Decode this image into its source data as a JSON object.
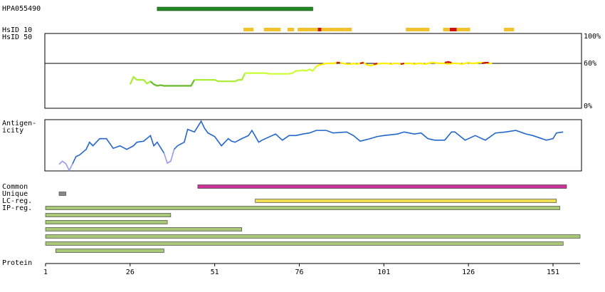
{
  "antibody": {
    "label": "HPA055490",
    "start": 34,
    "end": 80,
    "color": "#228822"
  },
  "hsid": {
    "label10": "HsID 10",
    "label50": "HsID 50",
    "segments": [
      {
        "start": 60,
        "end": 62,
        "color": "#f2c12e"
      },
      {
        "start": 66,
        "end": 70,
        "color": "#f2c12e"
      },
      {
        "start": 73,
        "end": 74,
        "color": "#f2c12e"
      },
      {
        "start": 76,
        "end": 82,
        "color": "#f2c12e"
      },
      {
        "start": 82,
        "end": 83,
        "color": "#cc1111"
      },
      {
        "start": 83,
        "end": 86,
        "color": "#f2c12e"
      },
      {
        "start": 87,
        "end": 89,
        "color": "#f2c12e"
      },
      {
        "start": 90,
        "end": 91,
        "color": "#f2c12e"
      },
      {
        "start": 108,
        "end": 114,
        "color": "#f2c12e"
      },
      {
        "start": 119,
        "end": 121,
        "color": "#f2c12e"
      },
      {
        "start": 121,
        "end": 123,
        "color": "#cc1111"
      },
      {
        "start": 123,
        "end": 126,
        "color": "#f2c12e"
      },
      {
        "start": 137,
        "end": 139,
        "color": "#f2c12e"
      }
    ]
  },
  "identity": {
    "ylim": [
      0,
      100
    ],
    "yticks": [
      {
        "value": 100,
        "label": "100%"
      },
      {
        "value": 60,
        "label": "60%"
      },
      {
        "value": 0,
        "label": "0%"
      }
    ],
    "segments": [
      {
        "color": "#aaee33",
        "start": 26,
        "values": [
          32,
          42,
          38,
          38,
          38,
          33,
          36
        ]
      },
      {
        "color": "#66bb22",
        "start": 32,
        "values": [
          36,
          32,
          30,
          31,
          30,
          30,
          30,
          30,
          30,
          30,
          30,
          30,
          30,
          38
        ]
      },
      {
        "color": "#aaee33",
        "start": 45,
        "values": [
          38,
          38,
          38,
          38,
          38,
          38,
          38,
          36,
          36,
          36,
          36,
          36,
          36,
          38,
          38,
          47
        ]
      },
      {
        "color": "#ccff33",
        "start": 60,
        "values": [
          47,
          47,
          47,
          47,
          47,
          47,
          47,
          46,
          46,
          46,
          46,
          46,
          46,
          46,
          47,
          50,
          50,
          51,
          50,
          52,
          50,
          56
        ]
      },
      {
        "color": "#ffee00",
        "start": 81,
        "values": [
          56,
          58,
          59,
          60,
          60,
          60,
          61,
          61,
          60,
          59,
          59,
          60,
          59,
          60,
          61,
          58,
          57,
          58,
          59,
          60,
          60,
          60,
          59,
          60,
          60,
          59,
          60,
          60,
          60,
          59,
          60,
          60,
          59,
          60,
          61,
          61,
          60,
          60,
          60,
          59,
          60,
          60,
          60,
          59,
          60,
          61,
          60,
          60,
          61,
          61,
          61,
          60,
          60
        ]
      },
      {
        "color": "#cc1111",
        "start": 87,
        "values": [
          61,
          61
        ]
      },
      {
        "color": "#cc1111",
        "start": 94,
        "values": [
          60,
          61
        ]
      },
      {
        "color": "#cc1111",
        "start": 98,
        "values": [
          59,
          60
        ]
      },
      {
        "color": "#cc1111",
        "start": 106,
        "values": [
          59,
          60
        ]
      },
      {
        "color": "#cc1111",
        "start": 119,
        "values": [
          61,
          62,
          61
        ]
      },
      {
        "color": "#cc1111",
        "start": 130,
        "values": [
          60,
          61,
          61
        ]
      }
    ]
  },
  "antigenicity": {
    "label_lines": [
      "Antigen-",
      "icity"
    ],
    "ylim": [
      0,
      100
    ],
    "segments": [
      {
        "color": "#9999ee",
        "x": [
          5,
          6,
          7,
          8,
          9
        ],
        "values": [
          13,
          19,
          14,
          1,
          14
        ]
      },
      {
        "color": "#2266cc",
        "x": [
          9,
          10,
          11,
          13,
          14,
          15,
          17,
          19,
          21,
          23,
          25,
          27,
          28,
          30,
          32,
          33,
          34,
          36
        ],
        "values": [
          14,
          28,
          31,
          42,
          56,
          49,
          63,
          63,
          44,
          49,
          42,
          49,
          56,
          58,
          69,
          49,
          56,
          35
        ]
      },
      {
        "color": "#9999ee",
        "x": [
          36,
          37,
          38,
          39
        ],
        "values": [
          35,
          15,
          19,
          42
        ]
      },
      {
        "color": "#2266cc",
        "x": [
          39,
          40,
          42,
          43,
          45,
          47,
          48,
          49,
          51,
          53,
          55,
          56,
          57,
          59,
          61,
          62,
          64,
          65,
          68,
          69,
          71,
          73,
          75,
          77,
          79,
          81,
          82,
          84,
          86,
          90,
          92,
          94,
          97,
          99,
          101,
          105,
          107,
          110,
          112,
          114,
          116,
          119,
          121,
          122,
          125,
          128,
          131,
          134,
          137,
          140,
          143,
          145,
          149,
          151,
          152,
          154
        ],
        "values": [
          42,
          49,
          56,
          81,
          76,
          97,
          83,
          74,
          67,
          49,
          63,
          58,
          56,
          63,
          69,
          79,
          56,
          60,
          69,
          72,
          60,
          69,
          69,
          72,
          74,
          79,
          79,
          79,
          74,
          76,
          69,
          58,
          63,
          67,
          69,
          72,
          76,
          72,
          74,
          63,
          60,
          60,
          76,
          76,
          60,
          69,
          60,
          74,
          76,
          79,
          72,
          69,
          60,
          63,
          74,
          76
        ]
      }
    ]
  },
  "tracks": [
    {
      "label": "Common",
      "bars": [
        {
          "start": 46,
          "end": 155,
          "color": "#cc3399"
        }
      ]
    },
    {
      "label": "Unique",
      "bars": [
        {
          "start": 5,
          "end": 7,
          "color": "#888888"
        }
      ]
    },
    {
      "label": "LC-reg.",
      "bars": [
        {
          "start": 63,
          "end": 152,
          "color": "#eedd55"
        }
      ]
    },
    {
      "label": "IP-reg.",
      "bars": [
        {
          "start": 1,
          "end": 153,
          "color": "#a8c878"
        },
        {
          "start": 1,
          "end": 38,
          "color": "#a8c878"
        },
        {
          "start": 1,
          "end": 37,
          "color": "#a8c878"
        },
        {
          "start": 1,
          "end": 59,
          "color": "#a8c878"
        },
        {
          "start": 1,
          "end": 159,
          "color": "#a8c878"
        },
        {
          "start": 1,
          "end": 154,
          "color": "#a8c878"
        },
        {
          "start": 4,
          "end": 36,
          "color": "#a8c878"
        }
      ]
    }
  ],
  "protein": {
    "label": "Protein",
    "xlim": [
      1,
      159
    ],
    "xticks": [
      1,
      26,
      51,
      76,
      101,
      126,
      151
    ]
  }
}
